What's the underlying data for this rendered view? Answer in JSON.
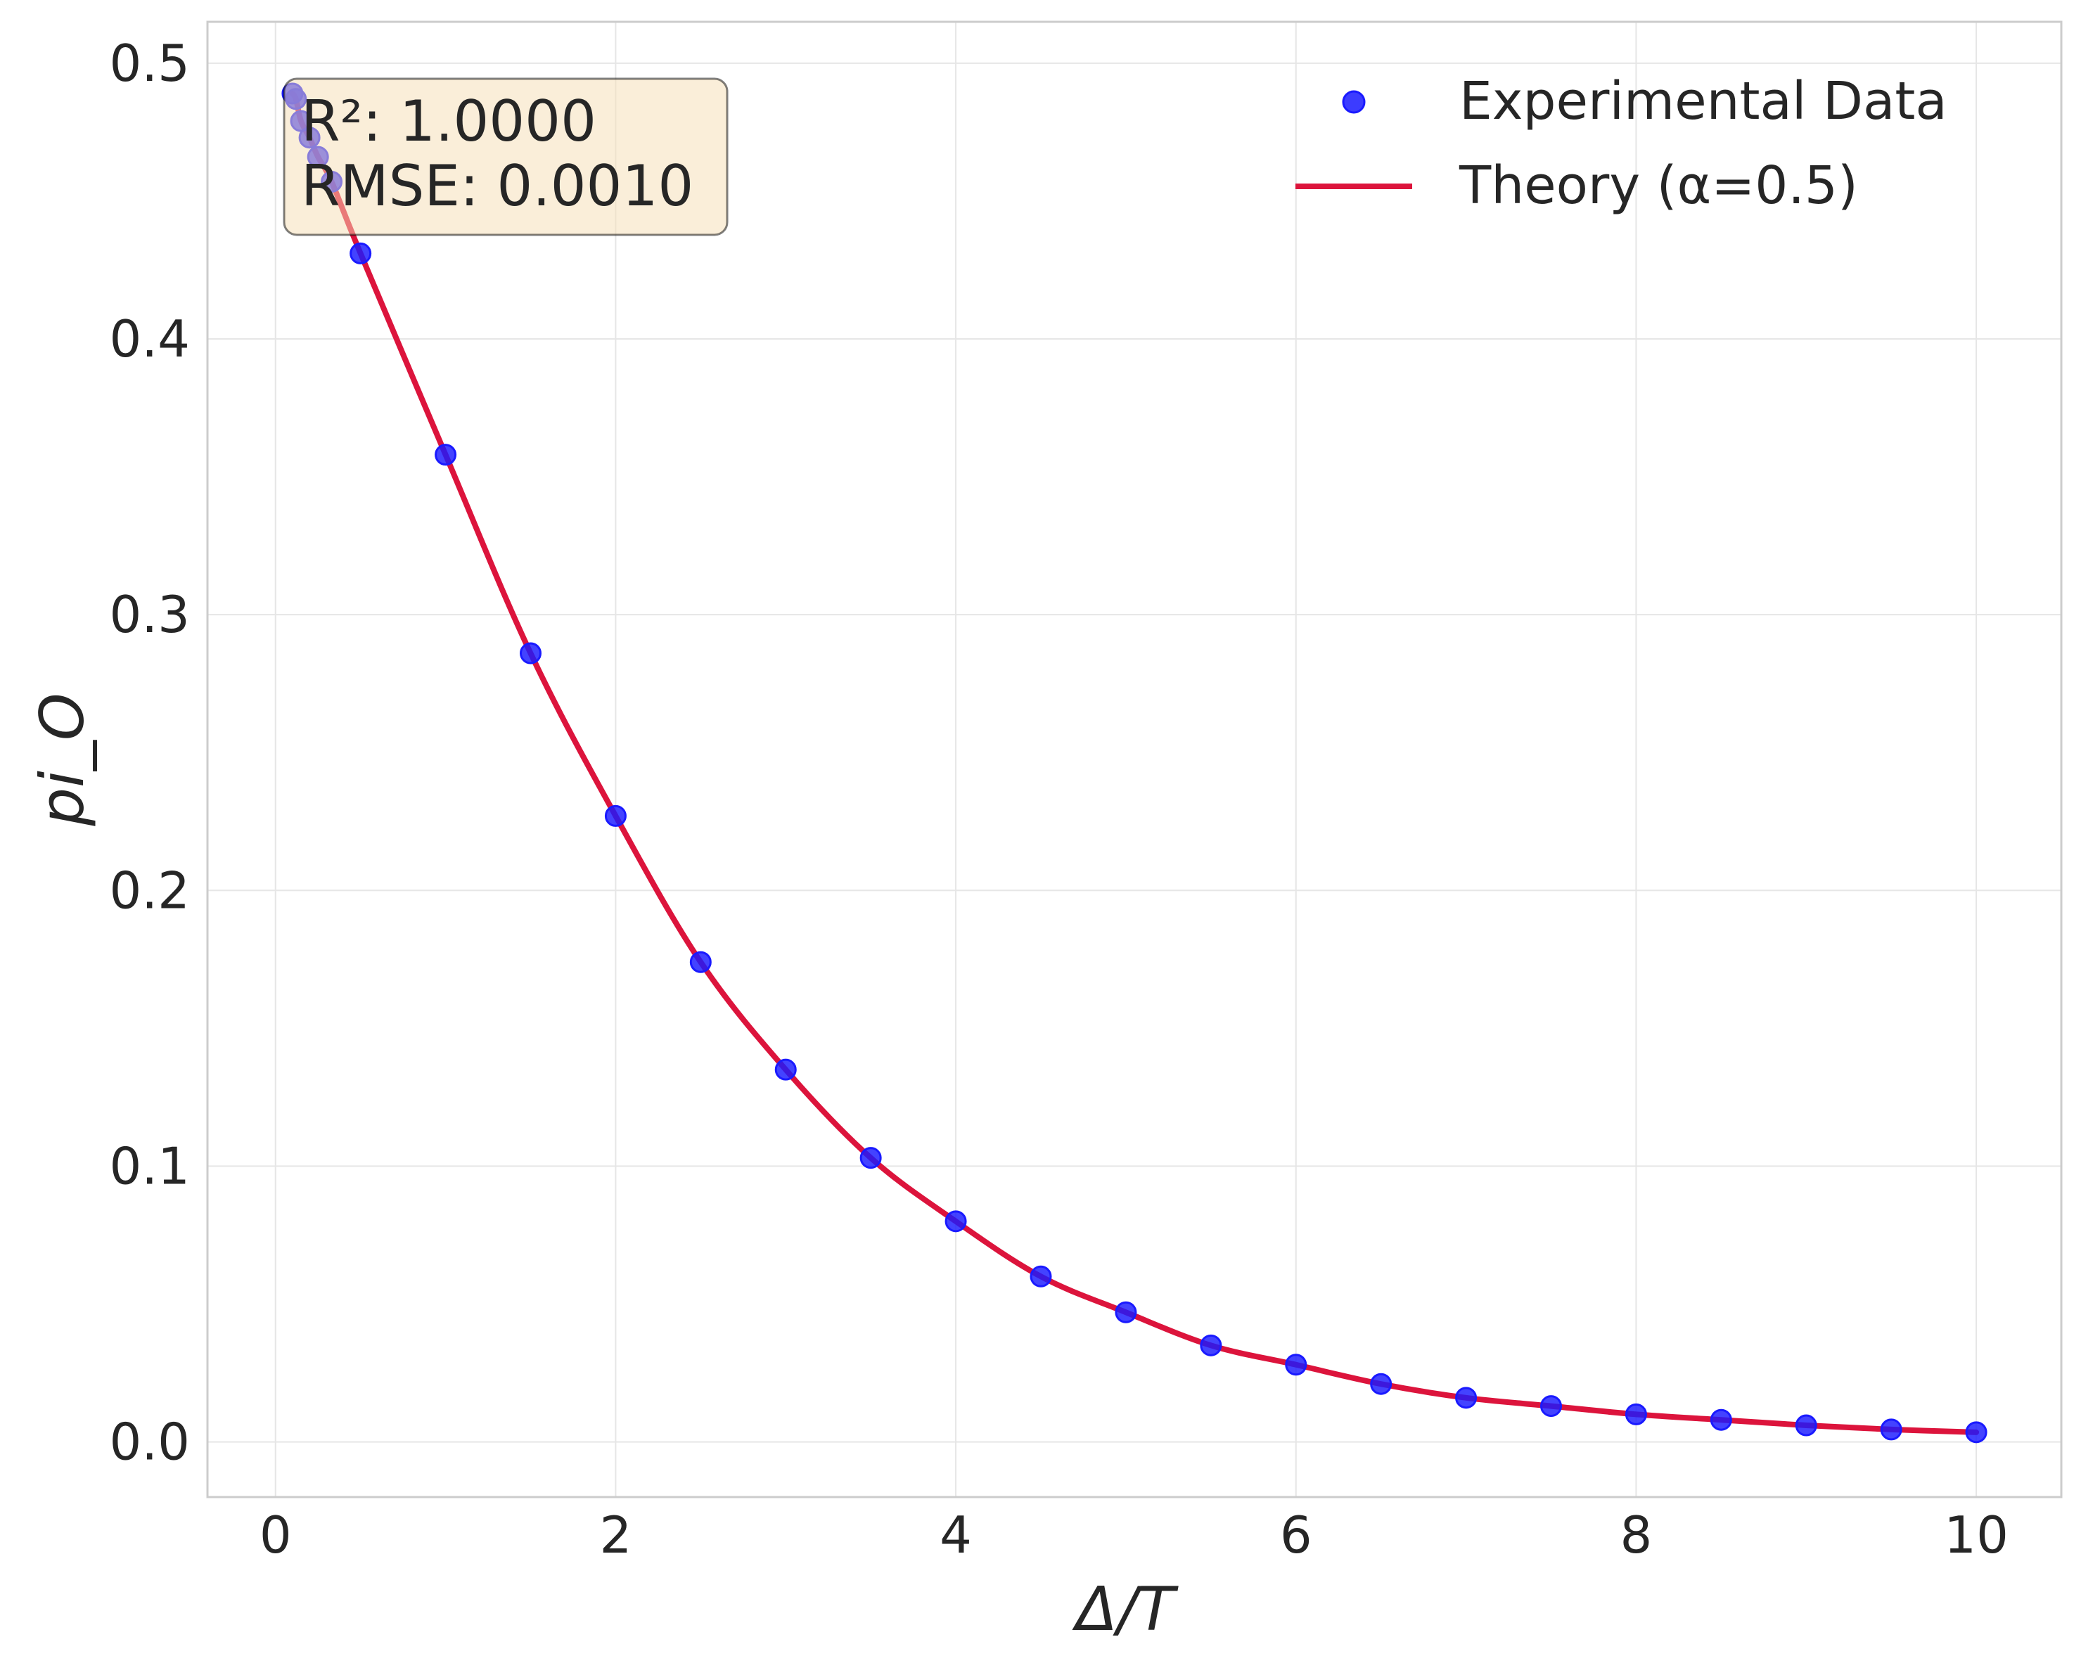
{
  "chart_data": {
    "type": "line",
    "title": "",
    "xlabel": "Δ/T",
    "ylabel": "pi_O",
    "xlim": [
      -0.4,
      10.5
    ],
    "ylim": [
      -0.02,
      0.515
    ],
    "grid": true,
    "legend_position": "top-right",
    "x_ticks": [
      {
        "value": 0,
        "label": "0"
      },
      {
        "value": 2,
        "label": "2"
      },
      {
        "value": 4,
        "label": "4"
      },
      {
        "value": 6,
        "label": "6"
      },
      {
        "value": 8,
        "label": "8"
      },
      {
        "value": 10,
        "label": "10"
      }
    ],
    "y_ticks": [
      {
        "value": 0.0,
        "label": "0.0"
      },
      {
        "value": 0.1,
        "label": "0.1"
      },
      {
        "value": 0.2,
        "label": "0.2"
      },
      {
        "value": 0.3,
        "label": "0.3"
      },
      {
        "value": 0.4,
        "label": "0.4"
      },
      {
        "value": 0.5,
        "label": "0.5"
      }
    ],
    "series": [
      {
        "name": "Experimental Data",
        "kind": "scatter",
        "color": "#1a1aff",
        "x": [
          0.1,
          0.12,
          0.15,
          0.2,
          0.25,
          0.33,
          0.5,
          1.0,
          1.5,
          2.0,
          2.5,
          3.0,
          3.5,
          4.0,
          4.5,
          5.0,
          5.5,
          6.0,
          6.5,
          7.0,
          7.5,
          8.0,
          8.5,
          9.0,
          9.5,
          10.0
        ],
        "y": [
          0.489,
          0.487,
          0.479,
          0.473,
          0.466,
          0.457,
          0.431,
          0.358,
          0.286,
          0.227,
          0.174,
          0.135,
          0.103,
          0.08,
          0.06,
          0.047,
          0.035,
          0.028,
          0.021,
          0.016,
          0.013,
          0.01,
          0.008,
          0.006,
          0.0045,
          0.0035
        ]
      },
      {
        "name": "Theory (α=0.5)",
        "kind": "line",
        "color": "#dc143c"
      }
    ],
    "stats_box": {
      "r2": "R²: 1.0000",
      "rmse": "RMSE: 0.0010"
    }
  }
}
